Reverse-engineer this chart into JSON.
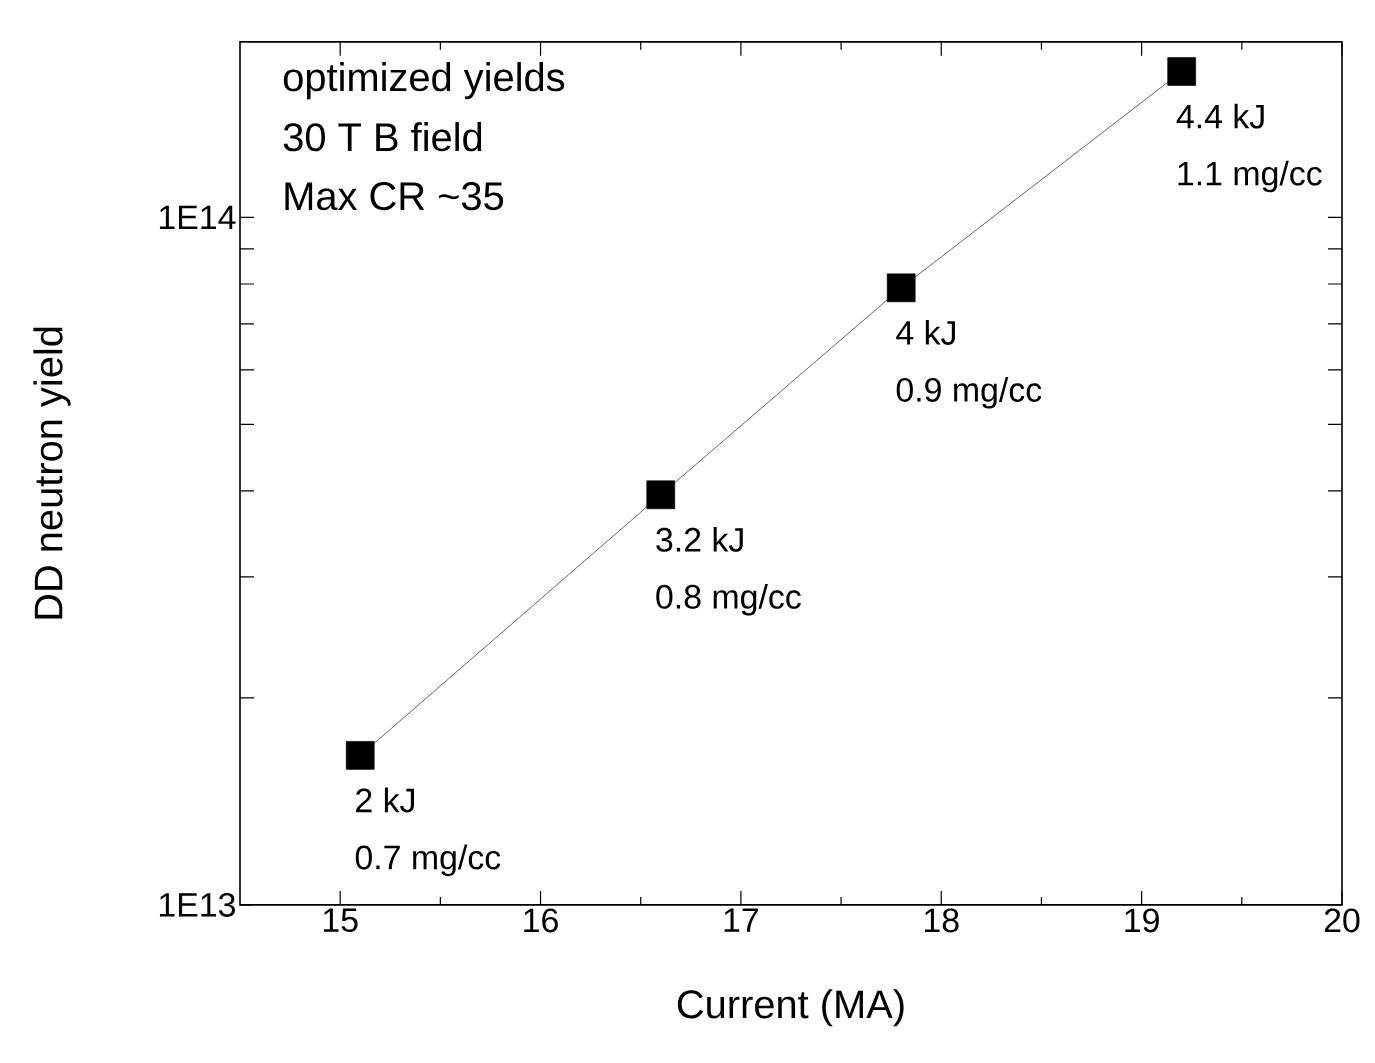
{
  "chart_data": {
    "type": "line",
    "xlabel": "Current (MA)",
    "ylabel": "DD neutron yield",
    "x": [
      15.1,
      16.6,
      17.8,
      19.2
    ],
    "series": [
      {
        "color": "#000000",
        "values": [
          16500000000000.0,
          39500000000000.0,
          79000000000000.0,
          163000000000000.0
        ]
      }
    ],
    "marker": "square",
    "line_style": "solid",
    "log": "y",
    "xlim": [
      14.5,
      20
    ],
    "ylim": [
      10000000000000.0,
      180000000000000.0
    ],
    "xticks": [
      15,
      16,
      17,
      18,
      19,
      20
    ],
    "yticks": [
      {
        "value": 10000000000000.0,
        "label": "1E13"
      },
      {
        "value": 20000000000000.0,
        "label": null
      },
      {
        "value": 30000000000000.0,
        "label": null
      },
      {
        "value": 40000000000000.0,
        "label": null
      },
      {
        "value": 50000000000000.0,
        "label": null
      },
      {
        "value": 60000000000000.0,
        "label": null
      },
      {
        "value": 70000000000000.0,
        "label": null
      },
      {
        "value": 80000000000000.0,
        "label": null
      },
      {
        "value": 90000000000000.0,
        "label": null
      },
      {
        "value": 100000000000000.0,
        "label": "1E14"
      }
    ],
    "annotations": [
      "optimized yields",
      "30 T B field",
      "Max CR ~35",
      {
        "text": "2 kJ",
        "x": 15.1,
        "y": 16500000000000.0
      },
      {
        "text": "0.7 mg/cc",
        "x": 15.1,
        "y": 16500000000000.0
      },
      {
        "text": "3.2 kJ",
        "x": 16.6,
        "y": 39500000000000.0
      },
      {
        "text": "0.8 mg/cc",
        "x": 16.6,
        "y": 39500000000000.0
      },
      {
        "text": "4 kJ",
        "x": 17.8,
        "y": 79000000000000.0
      },
      {
        "text": "0.9 mg/cc",
        "x": 17.8,
        "y": 79000000000000.0
      },
      {
        "text": "4.4 kJ",
        "x": 19.2,
        "y": 163000000000000.0
      },
      {
        "text": "1.1 mg/cc",
        "x": 19.2,
        "y": 163000000000000.0
      }
    ]
  }
}
